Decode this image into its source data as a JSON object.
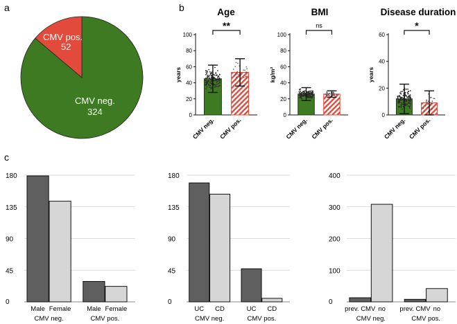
{
  "panel_labels": {
    "a": "a",
    "b": "b",
    "c": "c"
  },
  "colors": {
    "green": "#3e7a22",
    "red": "#e24a3b",
    "dark_bar": "#5f5f5f",
    "light_bar": "#d6d6d6",
    "grid": "#cfcfcf"
  },
  "chart_data": [
    {
      "id": "pie",
      "type": "pie",
      "title": "",
      "slices": [
        {
          "label": "CMV neg.",
          "value": 324
        },
        {
          "label": "CMV pos.",
          "value": 52
        }
      ]
    },
    {
      "id": "age",
      "type": "bar",
      "title": "Age",
      "ylabel": "years",
      "ylim": [
        0,
        100
      ],
      "yticks": [
        0,
        20,
        40,
        60,
        80,
        100
      ],
      "categories": [
        "CMV neg.",
        "CMV pos."
      ],
      "values": [
        45,
        53
      ],
      "errors": [
        17,
        17
      ],
      "significance": "**"
    },
    {
      "id": "bmi",
      "type": "bar",
      "title": "BMI",
      "ylabel": "kg/m²",
      "ylim": [
        0,
        100
      ],
      "yticks": [
        0,
        20,
        40,
        60,
        80,
        100
      ],
      "categories": [
        "CMV neg.",
        "CMV pos."
      ],
      "values": [
        26,
        26
      ],
      "errors": [
        8,
        4
      ],
      "significance": "ns"
    },
    {
      "id": "duration",
      "type": "bar",
      "title": "Disease duration",
      "ylabel": "years",
      "ylim": [
        0,
        60
      ],
      "yticks": [
        0,
        20,
        40,
        60
      ],
      "categories": [
        "CMV neg.",
        "CMV pos."
      ],
      "values": [
        12,
        9
      ],
      "errors": [
        11,
        9
      ],
      "significance": "*"
    },
    {
      "id": "sex",
      "type": "bar",
      "ylim": [
        0,
        180
      ],
      "yticks": [
        0,
        45,
        90,
        135,
        180
      ],
      "groups": [
        {
          "name": "CMV neg.",
          "categories": [
            "Male",
            "Female"
          ],
          "values": [
            179,
            143
          ]
        },
        {
          "name": "CMV pos.",
          "categories": [
            "Male",
            "Female"
          ],
          "values": [
            29,
            22
          ]
        }
      ]
    },
    {
      "id": "diagnosis",
      "type": "bar",
      "ylim": [
        0,
        180
      ],
      "yticks": [
        0,
        45,
        90,
        135,
        180
      ],
      "groups": [
        {
          "name": "CMV neg.",
          "categories": [
            "UC",
            "CD"
          ],
          "values": [
            169,
            153
          ]
        },
        {
          "name": "CMV pos.",
          "categories": [
            "UC",
            "CD"
          ],
          "values": [
            47,
            5
          ]
        }
      ]
    },
    {
      "id": "previous",
      "type": "bar",
      "ylim": [
        0,
        400
      ],
      "yticks": [
        0,
        100,
        200,
        300,
        400
      ],
      "groups": [
        {
          "name": "CMV neg.",
          "categories": [
            "prev. CMV",
            "no"
          ],
          "values": [
            13,
            308
          ]
        },
        {
          "name": "CMV pos.",
          "categories": [
            "prev. CMV",
            "no"
          ],
          "values": [
            8,
            42
          ]
        }
      ]
    }
  ]
}
